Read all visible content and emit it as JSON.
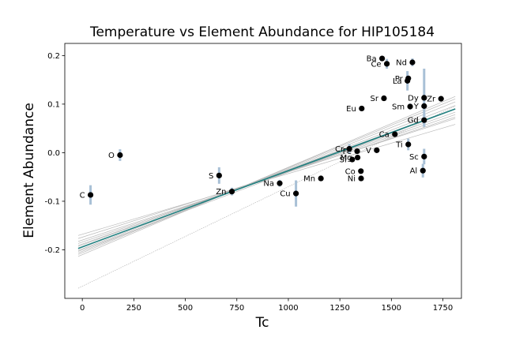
{
  "chart_data": {
    "type": "scatter",
    "title": "Temperature vs Element Abundance for HIP105184",
    "xlabel": "Tc",
    "ylabel": "Element Abundance",
    "xlim": [
      -85,
      1840
    ],
    "ylim": [
      -0.3,
      0.225
    ],
    "xticks": [
      "0",
      "250",
      "500",
      "750",
      "1000",
      "1250",
      "1500",
      "1750"
    ],
    "yticks": [
      "-0.2",
      "-0.1",
      "0.0",
      "0.1",
      "0.2"
    ],
    "grid": false,
    "colors": {
      "points": "#000000",
      "errorbars": "#a8c0d6",
      "fit": "#1f7f7f",
      "samples": "#b8b8b8"
    },
    "fit_line": {
      "slope": 0.000157,
      "intercept": -0.194
    },
    "sample_lines": [
      {
        "slope": 0.000157,
        "intercept": -0.194
      },
      {
        "slope": 0.000145,
        "intercept": -0.184
      },
      {
        "slope": 0.00017,
        "intercept": -0.203
      },
      {
        "slope": 0.00015,
        "intercept": -0.188
      },
      {
        "slope": 0.000163,
        "intercept": -0.198
      },
      {
        "slope": 0.000135,
        "intercept": -0.174
      },
      {
        "slope": 0.00018,
        "intercept": -0.21
      },
      {
        "slope": 0.000125,
        "intercept": -0.168
      },
      {
        "slope": 0.000155,
        "intercept": -0.19
      },
      {
        "slope": 0.00016,
        "intercept": -0.2
      },
      {
        "slope": 0.00014,
        "intercept": -0.18
      },
      {
        "slope": 0.000175,
        "intercept": -0.206
      },
      {
        "slope": 0.000205,
        "intercept": -0.275
      }
    ],
    "points": [
      {
        "label": "C",
        "x": 40,
        "y": -0.087,
        "err": 0.02
      },
      {
        "label": "O",
        "x": 183,
        "y": -0.005,
        "err": 0.012
      },
      {
        "label": "S",
        "x": 664,
        "y": -0.047,
        "err": 0.017
      },
      {
        "label": "Zn",
        "x": 726,
        "y": -0.08,
        "err": 0.008
      },
      {
        "label": "Na",
        "x": 958,
        "y": -0.063,
        "err": 0.007
      },
      {
        "label": "Cu",
        "x": 1037,
        "y": -0.084,
        "err": 0.027
      },
      {
        "label": "Mn",
        "x": 1158,
        "y": -0.053,
        "err": 0.004
      },
      {
        "label": "Cr",
        "x": 1296,
        "y": 0.008,
        "err": 0.01
      },
      {
        "label": "Fe",
        "x": 1334,
        "y": 0.003,
        "err": 0.004
      },
      {
        "label": "Mg",
        "x": 1336,
        "y": -0.01,
        "err": 0.004
      },
      {
        "label": "Si",
        "x": 1310,
        "y": -0.014,
        "err": 0.004
      },
      {
        "label": "V",
        "x": 1429,
        "y": 0.005,
        "err": 0.004
      },
      {
        "label": "Co",
        "x": 1352,
        "y": -0.038,
        "err": 0.005
      },
      {
        "label": "Ni",
        "x": 1353,
        "y": -0.053,
        "err": 0.004
      },
      {
        "label": "Eu",
        "x": 1356,
        "y": 0.091,
        "err": 0.004
      },
      {
        "label": "Sr",
        "x": 1464,
        "y": 0.112,
        "err": 0.005
      },
      {
        "label": "Ba",
        "x": 1455,
        "y": 0.194,
        "err": 0.004
      },
      {
        "label": "Ce",
        "x": 1478,
        "y": 0.183,
        "err": 0.01
      },
      {
        "label": "Ca",
        "x": 1517,
        "y": 0.038,
        "err": 0.004
      },
      {
        "label": "Nd",
        "x": 1602,
        "y": 0.186,
        "err": 0.008
      },
      {
        "label": "Pr",
        "x": 1582,
        "y": 0.153,
        "err": 0.005
      },
      {
        "label": "La",
        "x": 1578,
        "y": 0.148,
        "err": 0.02
      },
      {
        "label": "Dy",
        "x": 1659,
        "y": 0.113,
        "err": 0.06
      },
      {
        "label": "Zr",
        "x": 1741,
        "y": 0.111,
        "err": 0.005
      },
      {
        "label": "Sm",
        "x": 1591,
        "y": 0.095,
        "err": 0.006
      },
      {
        "label": "Y",
        "x": 1659,
        "y": 0.096,
        "err": 0.005
      },
      {
        "label": "Gd",
        "x": 1659,
        "y": 0.067,
        "err": 0.012
      },
      {
        "label": "Ti",
        "x": 1582,
        "y": 0.017,
        "err": 0.012
      },
      {
        "label": "Sc",
        "x": 1659,
        "y": -0.008,
        "err": 0.016
      },
      {
        "label": "Al",
        "x": 1653,
        "y": -0.037,
        "err": 0.014
      }
    ]
  }
}
